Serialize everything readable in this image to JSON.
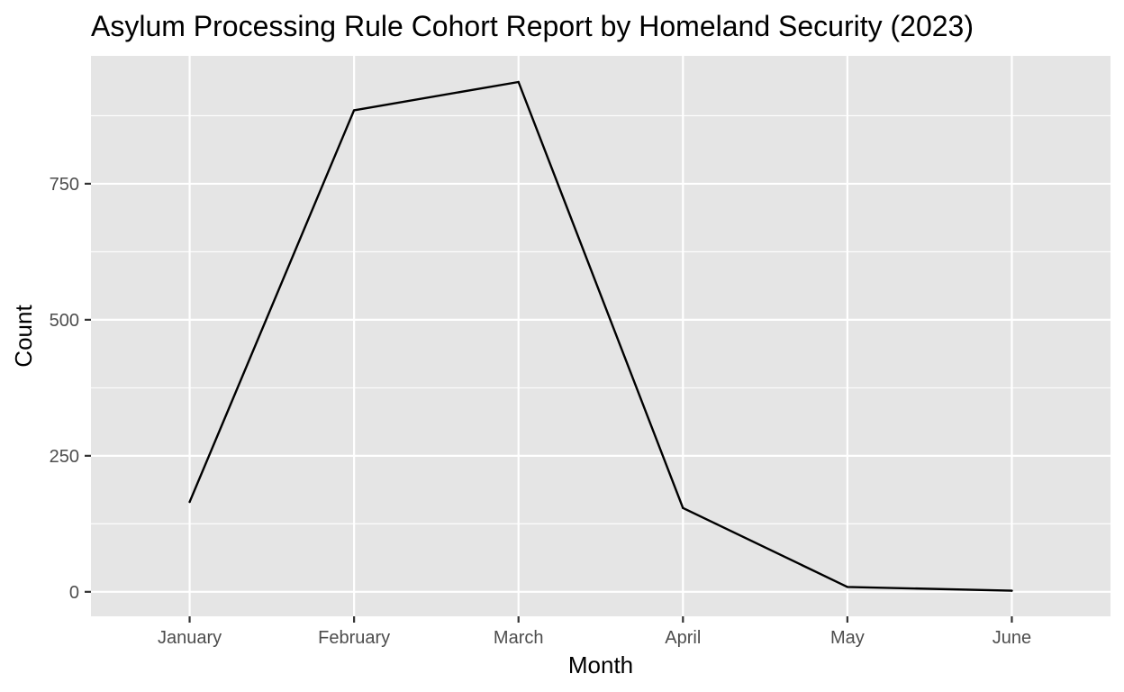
{
  "chart_data": {
    "type": "line",
    "title": "Asylum Processing Rule Cohort Report by Homeland Security (2023)",
    "xlabel": "Month",
    "ylabel": "Count",
    "categories": [
      "January",
      "February",
      "March",
      "April",
      "May",
      "June"
    ],
    "series": [
      {
        "values": [
          165,
          885,
          937,
          154,
          9,
          2
        ]
      }
    ],
    "ylim": [
      -45,
      985
    ],
    "y_ticks": [
      0,
      250,
      500,
      750
    ],
    "y_tick_labels": [
      "0",
      "250",
      "500",
      "750"
    ],
    "grid": true,
    "legend": "none",
    "colors": {
      "panel_background": "#e5e5e5",
      "grid_line": "#ffffff",
      "series_line": "#000000",
      "tick_text": "#4d4d4d",
      "tick_mark": "#333333"
    }
  }
}
